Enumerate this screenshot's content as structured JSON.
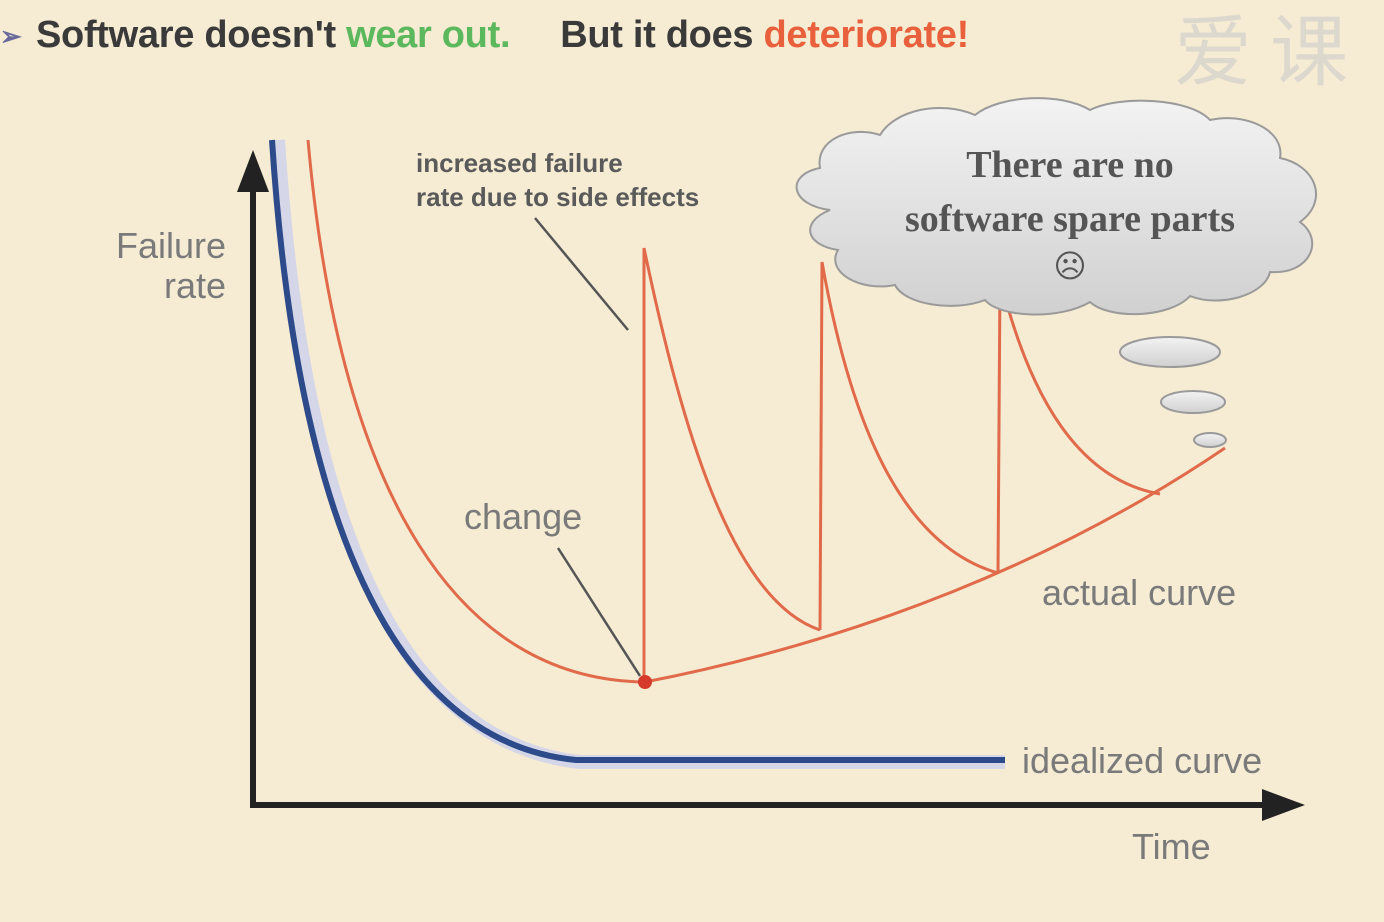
{
  "headline": {
    "part1": "Software doesn't ",
    "part2": "wear out.",
    "part3": "But it does ",
    "part4": "deteriorate!",
    "color_part2": "#4caf50",
    "color_part4": "#e8603c"
  },
  "watermark": "爱课",
  "axes": {
    "y_label_line1": "Failure",
    "y_label_line2": "rate",
    "x_label": "Time"
  },
  "annotations": {
    "side_effects_line1": "increased failure",
    "side_effects_line2": "rate due to side effects",
    "change": "change",
    "actual_curve": "actual curve",
    "idealized_curve": "idealized curve"
  },
  "cloud": {
    "line1": "There are no",
    "line2": "software spare parts",
    "line3": "☹"
  },
  "colors": {
    "actual": "#e06a4a",
    "idealized": "#2d4a8a",
    "axis": "#222222",
    "background": "#f6ebd3"
  }
}
